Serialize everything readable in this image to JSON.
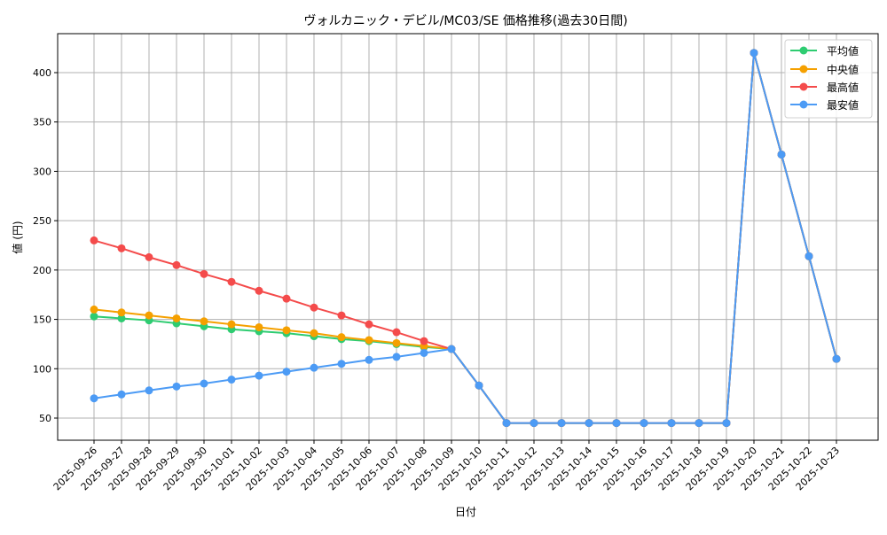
{
  "chart_data": {
    "type": "line",
    "title": "ヴォルカニック・デビル/MC03/SE 価格推移(過去30日間)",
    "xlabel": "日付",
    "ylabel": "値 (円)",
    "ylim": [
      27,
      438
    ],
    "yticks": [
      50,
      100,
      150,
      200,
      250,
      300,
      350,
      400
    ],
    "grid": true,
    "legend_position": "upper right",
    "categories": [
      "2025-09-26",
      "2025-09-27",
      "2025-09-28",
      "2025-09-29",
      "2025-09-30",
      "2025-10-01",
      "2025-10-02",
      "2025-10-03",
      "2025-10-04",
      "2025-10-05",
      "2025-10-06",
      "2025-10-07",
      "2025-10-08",
      "2025-10-09",
      "2025-10-10",
      "2025-10-11",
      "2025-10-12",
      "2025-10-13",
      "2025-10-14",
      "2025-10-15",
      "2025-10-16",
      "2025-10-17",
      "2025-10-18",
      "2025-10-19",
      "2025-10-20",
      "2025-10-21",
      "2025-10-22",
      "2025-10-23"
    ],
    "series": [
      {
        "name": "平均値",
        "color": "#2ecc71",
        "values": [
          153,
          151,
          149,
          146,
          143,
          140,
          138,
          136,
          133,
          130,
          128,
          125,
          122,
          120,
          83,
          45,
          45,
          45,
          45,
          45,
          45,
          45,
          45,
          45,
          420,
          317,
          214,
          110
        ]
      },
      {
        "name": "中央値",
        "color": "#f5a000",
        "values": [
          160,
          157,
          154,
          151,
          148,
          145,
          142,
          139,
          136,
          132,
          129,
          126,
          123,
          120,
          83,
          45,
          45,
          45,
          45,
          45,
          45,
          45,
          45,
          45,
          420,
          317,
          214,
          110
        ]
      },
      {
        "name": "最高値",
        "color": "#f44b4b",
        "values": [
          230,
          222,
          213,
          205,
          196,
          188,
          179,
          171,
          162,
          154,
          145,
          137,
          128,
          120,
          83,
          45,
          45,
          45,
          45,
          45,
          45,
          45,
          45,
          45,
          420,
          317,
          214,
          110
        ]
      },
      {
        "name": "最安値",
        "color": "#4c9bf5",
        "values": [
          70,
          74,
          78,
          82,
          85,
          89,
          93,
          97,
          101,
          105,
          109,
          112,
          116,
          120,
          83,
          45,
          45,
          45,
          45,
          45,
          45,
          45,
          45,
          45,
          420,
          317,
          214,
          110
        ]
      }
    ]
  }
}
